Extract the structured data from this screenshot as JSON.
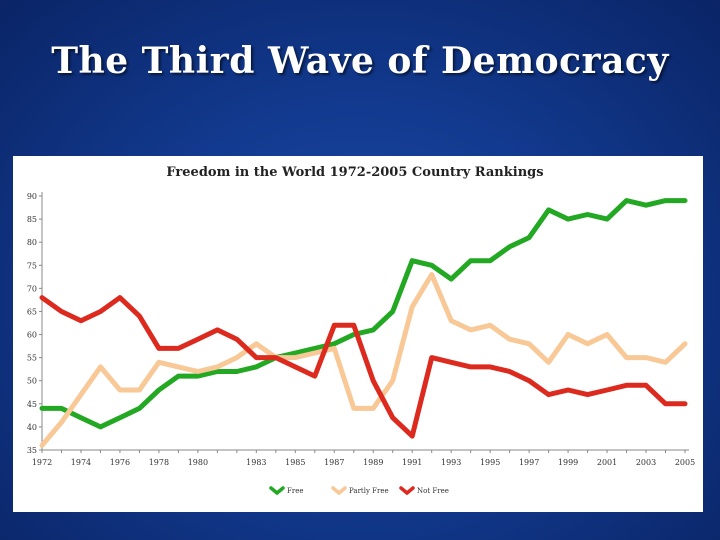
{
  "slide": {
    "title": "The Third Wave of Democracy"
  },
  "chart_data": {
    "type": "line",
    "title": "Freedom in the World 1972-2005 Country Rankings",
    "xlabel": "",
    "ylabel": "",
    "ylim": [
      35,
      90
    ],
    "yticks": [
      35,
      40,
      45,
      50,
      55,
      60,
      65,
      70,
      75,
      80,
      85,
      90
    ],
    "xticks": [
      1972,
      1974,
      1976,
      1978,
      1980,
      1983,
      1985,
      1987,
      1989,
      1991,
      1993,
      1995,
      1997,
      1999,
      2001,
      2003,
      2005
    ],
    "x": [
      1972,
      1973,
      1974,
      1975,
      1976,
      1977,
      1978,
      1979,
      1980,
      1981,
      1982,
      1983,
      1984,
      1985,
      1986,
      1987,
      1988,
      1989,
      1990,
      1991,
      1992,
      1993,
      1994,
      1995,
      1996,
      1997,
      1998,
      1999,
      2000,
      2001,
      2002,
      2003,
      2004,
      2005
    ],
    "grid": false,
    "legend_position": "bottom-center",
    "series": [
      {
        "name": "Free",
        "color": "#22a822",
        "values": [
          44,
          44,
          42,
          40,
          42,
          44,
          48,
          51,
          51,
          52,
          52,
          53,
          55,
          56,
          57,
          58,
          60,
          61,
          65,
          76,
          75,
          72,
          76,
          76,
          79,
          81,
          87,
          85,
          86,
          85,
          89,
          88,
          89,
          89
        ]
      },
      {
        "name": "Partly Free",
        "color": "#f8c896",
        "values": [
          36,
          41,
          47,
          53,
          48,
          48,
          54,
          53,
          52,
          53,
          55,
          58,
          55,
          55,
          56,
          57,
          44,
          44,
          50,
          66,
          73,
          63,
          61,
          62,
          59,
          58,
          54,
          60,
          58,
          60,
          55,
          55,
          54,
          58
        ]
      },
      {
        "name": "Not Free",
        "color": "#dd2a1e",
        "values": [
          68,
          65,
          63,
          65,
          68,
          64,
          57,
          57,
          59,
          61,
          59,
          55,
          55,
          53,
          51,
          62,
          62,
          50,
          42,
          38,
          55,
          54,
          53,
          53,
          52,
          50,
          47,
          48,
          47,
          48,
          49,
          49,
          45,
          45
        ]
      }
    ]
  }
}
